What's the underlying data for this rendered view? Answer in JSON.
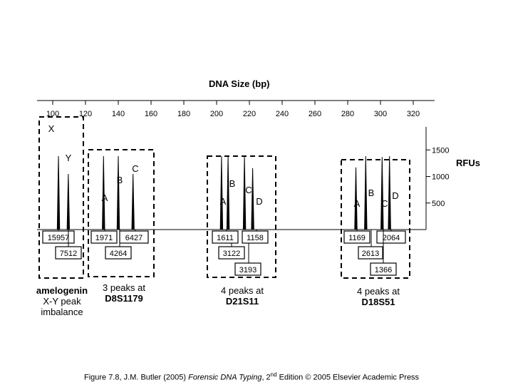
{
  "chart_data": {
    "type": "electropherogram",
    "title": "DNA Size (bp)",
    "x_axis": {
      "label": "DNA Size (bp)",
      "range": [
        98,
        332
      ],
      "ticks": [
        100,
        120,
        140,
        160,
        180,
        200,
        220,
        240,
        260,
        280,
        300,
        320
      ]
    },
    "y_axis": {
      "label": "RFUs",
      "range": [
        0,
        1750
      ],
      "ticks": [
        500,
        1000,
        1500
      ]
    },
    "loci": [
      {
        "name": "amelogenin",
        "annotation": [
          "amelogenin",
          "X-Y peak",
          "imbalance"
        ],
        "peaks": [
          {
            "allele": "X",
            "size": 103.5,
            "rfu": 15957
          },
          {
            "allele": "Y",
            "size": 109.5,
            "rfu": 7512
          }
        ],
        "labels": [
          "15957",
          "7512"
        ]
      },
      {
        "name": "D8S1179",
        "annotation": [
          "3 peaks at",
          "D8S1179"
        ],
        "peaks": [
          {
            "allele": "A",
            "size": 131,
            "rfu": 1971
          },
          {
            "allele": "B",
            "size": 140,
            "rfu": 4264
          },
          {
            "allele": "C",
            "size": 149,
            "rfu": 6427
          }
        ],
        "labels": [
          "1971",
          "6427",
          "4264"
        ]
      },
      {
        "name": "D21S11",
        "annotation": [
          "4 peaks at",
          "D21S11"
        ],
        "peaks": [
          {
            "allele": "A",
            "size": 203,
            "rfu": 1611
          },
          {
            "allele": "B",
            "size": 207,
            "rfu": 3122
          },
          {
            "allele": "C",
            "size": 217,
            "rfu": 3193
          },
          {
            "allele": "D",
            "size": 222,
            "rfu": 1158
          }
        ],
        "labels": [
          "1611",
          "1158",
          "3122",
          "3193"
        ]
      },
      {
        "name": "D18S51",
        "annotation": [
          "4 peaks at",
          "D18S51"
        ],
        "peaks": [
          {
            "allele": "A",
            "size": 285,
            "rfu": 1169
          },
          {
            "allele": "B",
            "size": 291,
            "rfu": 2613
          },
          {
            "allele": "C",
            "size": 301,
            "rfu": 1366
          },
          {
            "allele": "D",
            "size": 305.5,
            "rfu": 2064
          }
        ],
        "labels": [
          "1169",
          "2064",
          "2613",
          "1366"
        ]
      }
    ],
    "caption_parts": [
      "Figure 7.8, J.M. Butler (2005) ",
      "Forensic DNA Typing",
      ", 2",
      "nd",
      " Edition © 2005 Elsevier Academic Press"
    ]
  }
}
